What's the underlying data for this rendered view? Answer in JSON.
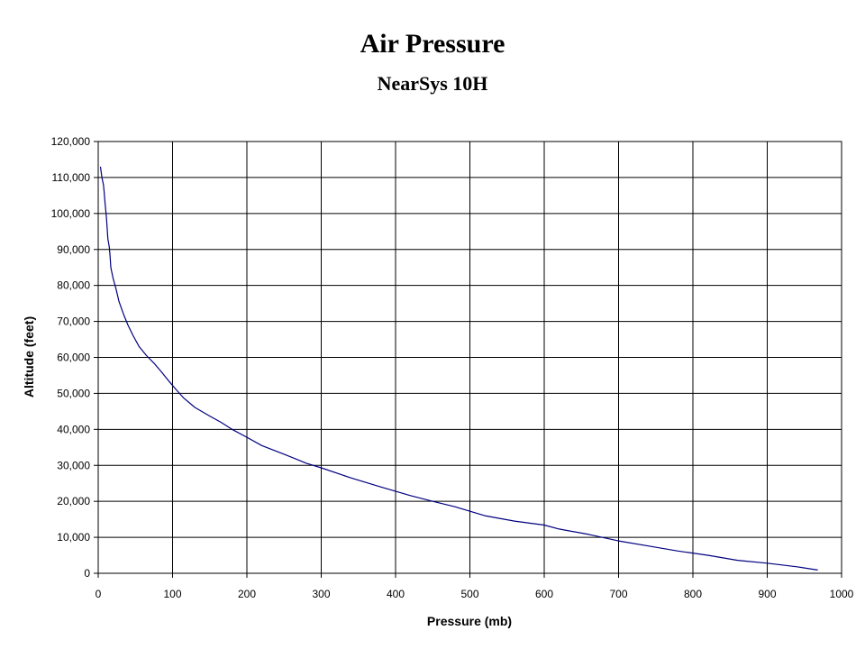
{
  "chart_data": {
    "type": "line",
    "title": "Air Pressure",
    "subtitle": "NearSys 10H",
    "xlabel": "Pressure (mb)",
    "ylabel": "Altitude (feet)",
    "xlim": [
      0,
      1000
    ],
    "ylim": [
      0,
      120000
    ],
    "x_ticks": [
      "0",
      "100",
      "200",
      "300",
      "400",
      "500",
      "600",
      "700",
      "800",
      "900",
      "1000"
    ],
    "y_ticks": [
      "0",
      "10,000",
      "20,000",
      "30,000",
      "40,000",
      "50,000",
      "60,000",
      "70,000",
      "80,000",
      "90,000",
      "100,000",
      "110,000",
      "120,000"
    ],
    "grid": true,
    "legend": "none",
    "series": [
      {
        "color": "#000080",
        "points": [
          [
            968,
            900
          ],
          [
            940,
            1800
          ],
          [
            900,
            2800
          ],
          [
            860,
            3600
          ],
          [
            820,
            5000
          ],
          [
            780,
            6200
          ],
          [
            740,
            7600
          ],
          [
            700,
            9000
          ],
          [
            660,
            10800
          ],
          [
            620,
            12300
          ],
          [
            600,
            13400
          ],
          [
            560,
            14500
          ],
          [
            520,
            16000
          ],
          [
            480,
            18500
          ],
          [
            450,
            20000
          ],
          [
            420,
            21600
          ],
          [
            380,
            24000
          ],
          [
            340,
            26500
          ],
          [
            300,
            29300
          ],
          [
            280,
            30600
          ],
          [
            250,
            33100
          ],
          [
            220,
            35500
          ],
          [
            200,
            37800
          ],
          [
            180,
            40000
          ],
          [
            165,
            42000
          ],
          [
            150,
            43700
          ],
          [
            130,
            46100
          ],
          [
            115,
            48700
          ],
          [
            105,
            51000
          ],
          [
            95,
            53400
          ],
          [
            85,
            56000
          ],
          [
            75,
            58400
          ],
          [
            65,
            60500
          ],
          [
            55,
            63000
          ],
          [
            47,
            66000
          ],
          [
            40,
            69000
          ],
          [
            34,
            72000
          ],
          [
            28,
            75500
          ],
          [
            24,
            79000
          ],
          [
            20,
            82000
          ],
          [
            17,
            85000
          ],
          [
            16,
            88000
          ],
          [
            15,
            90500
          ],
          [
            13,
            93000
          ],
          [
            12,
            96000
          ],
          [
            11,
            99000
          ],
          [
            10,
            101000
          ],
          [
            9,
            103500
          ],
          [
            8,
            106000
          ],
          [
            7,
            108000
          ],
          [
            5,
            110000
          ],
          [
            4,
            111500
          ],
          [
            3,
            113000
          ]
        ]
      }
    ]
  }
}
